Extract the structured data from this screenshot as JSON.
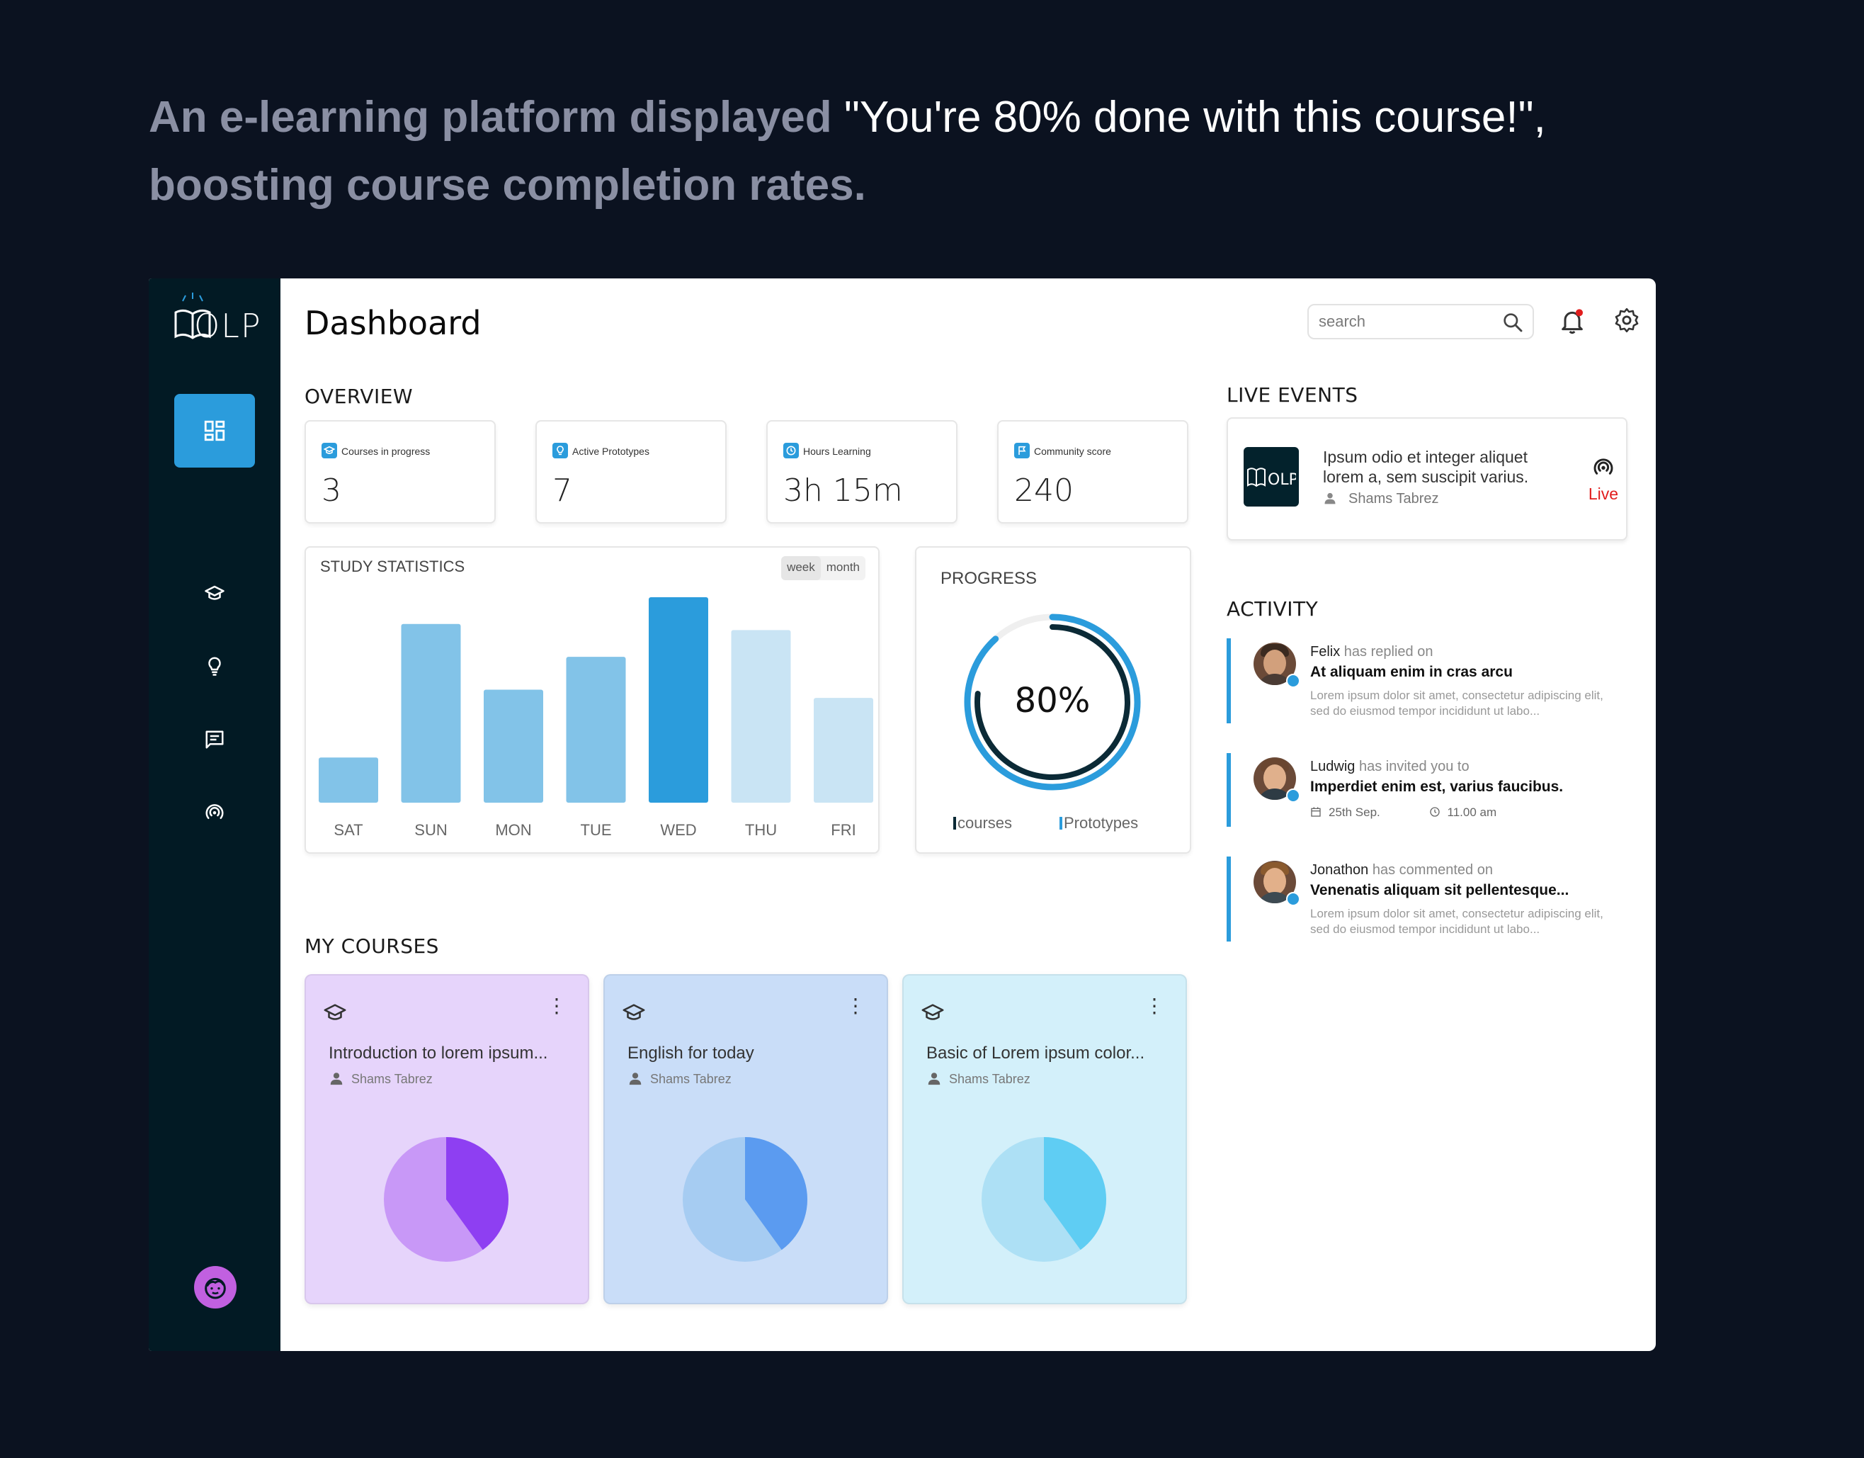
{
  "headline": {
    "lead": "An e-learning platform displayed ",
    "highlight": "\"You're 80% done with this course!\",",
    "tail": " boosting course completion rates."
  },
  "app": {
    "logo_text": "OLP",
    "title": "Dashboard",
    "search": {
      "placeholder": "search"
    },
    "sidebar": {
      "items": [
        "dashboard-icon",
        "graduation-cap-icon",
        "lightbulb-icon",
        "chat-icon",
        "broadcast-icon"
      ]
    }
  },
  "overview": {
    "title": "OVERVIEW",
    "cards": [
      {
        "label": "Courses in progress",
        "value": "3",
        "icon": "graduation-cap-icon"
      },
      {
        "label": "Active Prototypes",
        "value": "7",
        "icon": "lightbulb-icon"
      },
      {
        "label": "Hours Learning",
        "value": "3h 15m",
        "icon": "clock-icon"
      },
      {
        "label": "Community score",
        "value": "240",
        "icon": "flag-icon"
      }
    ]
  },
  "study": {
    "title": "STUDY STATISTICS",
    "toggle": [
      "week",
      "month"
    ]
  },
  "chart_data": {
    "type": "bar",
    "title": "STUDY STATISTICS",
    "categories": [
      "SAT",
      "SUN",
      "MON",
      "TUE",
      "WED",
      "THU",
      "FRI"
    ],
    "values": [
      22,
      87,
      55,
      71,
      100,
      84,
      51
    ],
    "ylim": [
      0,
      100
    ],
    "highlight_index": 4,
    "colors": [
      "#82c3e8",
      "#82c3e8",
      "#82c3e8",
      "#82c3e8",
      "#2b9cdc",
      "#c9e4f4",
      "#c9e4f4"
    ]
  },
  "progress": {
    "title": "PROGRESS",
    "value_label": "80%",
    "value": 0.8,
    "legend": [
      "courses",
      "Prototypes"
    ],
    "colors": {
      "courses": "#0b2a36",
      "prototypes": "#2b9cdc"
    }
  },
  "live_events": {
    "title": "LIVE EVENTS",
    "event": {
      "text": "Ipsum odio et integer aliquet lorem a, sem suscipit varius.",
      "author": "Shams Tabrez",
      "badge": "Live"
    }
  },
  "activity": {
    "title": "ACTIVITY",
    "items": [
      {
        "name": "Felix",
        "action": "has replied on",
        "subject": "At aliquam enim in cras arcu",
        "body": "Lorem ipsum dolor sit amet, consectetur adipiscing elit, sed do eiusmod tempor incididunt ut labo..."
      },
      {
        "name": "Ludwig",
        "action": "has invited you to",
        "subject": "Imperdiet enim est, varius faucibus.",
        "date": "25th Sep.",
        "time": "11.00 am"
      },
      {
        "name": "Jonathon",
        "action": "has commented on",
        "subject": "Venenatis aliquam sit pellentesque...",
        "body": "Lorem ipsum dolor sit amet, consectetur adipiscing elit, sed do eiusmod tempor incididunt ut labo..."
      }
    ]
  },
  "my_courses": {
    "title": "MY COURSES",
    "items": [
      {
        "name": "Introduction to lorem ipsum...",
        "author": "Shams Tabrez",
        "progress": 0.4,
        "bg": "#e6d4fb",
        "light": "#c898f7",
        "dark": "#8e3ff2"
      },
      {
        "name": "English for today",
        "author": "Shams Tabrez",
        "progress": 0.4,
        "bg": "#c9ddf8",
        "light": "#a6ccf2",
        "dark": "#5b9bf0"
      },
      {
        "name": "Basic of Lorem ipsum color...",
        "author": "Shams Tabrez",
        "progress": 0.4,
        "bg": "#d3f0fa",
        "light": "#ade0f5",
        "dark": "#5fcdf3"
      }
    ]
  }
}
